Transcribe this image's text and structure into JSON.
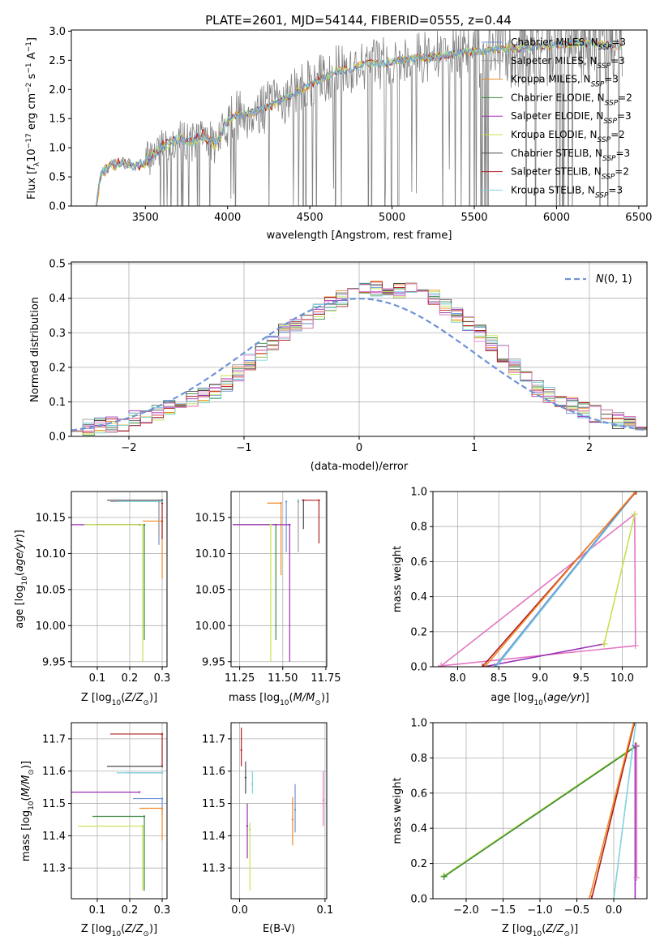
{
  "figure": {
    "title": "PLATE=2601, MJD=54144, FIBERID=0555, z=0.44"
  },
  "colors": {
    "Chabrier MILES": "#6f93d6",
    "Salpeter MILES": "#9b9b9b",
    "Kroupa MILES": "#f08a28",
    "Chabrier ELODIE": "#3d8a3d",
    "Salpeter ELODIE": "#9d2fb5",
    "Kroupa ELODIE": "#c4e34c",
    "Chabrier STELIB": "#4a4a4a",
    "Salpeter STELIB": "#b01e1e",
    "Kroupa STELIB": "#7fd3df",
    "Salpeter MILES marker": "#e377c2",
    "gaussian": "#6f93d6"
  },
  "chart_data": [
    {
      "id": "spectrum",
      "type": "line",
      "xlabel": "wavelength [Angstrom, rest frame]",
      "ylabel": "Flux [f_λ 10^-17 erg cm^-2 s^-1 A^-1]",
      "xlim": [
        3050,
        6550
      ],
      "ylim": [
        0,
        3.02
      ],
      "xticks": [
        3500,
        4000,
        4500,
        5000,
        5500,
        6000,
        6500
      ],
      "yticks": [
        0.0,
        0.5,
        1.0,
        1.5,
        2.0,
        2.5,
        3.0
      ],
      "grid": false,
      "legend_position": "top-right",
      "legend": [
        {
          "label": "Chabrier MILES, N_SSP=3",
          "color": "Chabrier MILES"
        },
        {
          "label": "Salpeter MILES, N_SSP=3",
          "color": "Salpeter MILES"
        },
        {
          "label": "Kroupa MILES, N_SSP=3",
          "color": "Kroupa MILES"
        },
        {
          "label": "Chabrier ELODIE, N_SSP=2",
          "color": "Chabrier ELODIE"
        },
        {
          "label": "Salpeter ELODIE, N_SSP=3",
          "color": "Salpeter ELODIE"
        },
        {
          "label": "Kroupa ELODIE, N_SSP=2",
          "color": "Kroupa ELODIE"
        },
        {
          "label": "Chabrier STELIB, N_SSP=3",
          "color": "Chabrier STELIB"
        },
        {
          "label": "Salpeter STELIB, N_SSP=2",
          "color": "Salpeter STELIB"
        },
        {
          "label": "Kroupa STELIB, N_SSP=3",
          "color": "Kroupa STELIB"
        }
      ],
      "model_envelope": {
        "x": [
          3200,
          3230,
          3260,
          3300,
          3350,
          3400,
          3450,
          3500,
          3560,
          3620,
          3700,
          3780,
          3850,
          3930,
          4000,
          4050,
          4150,
          4250,
          4350,
          4450,
          4550,
          4650,
          4750,
          4850,
          4950,
          5050,
          5150,
          5250,
          5350,
          5450,
          5550,
          5650,
          5750,
          5850,
          5950,
          6050,
          6150,
          6250,
          6350,
          6400
        ],
        "y": [
          0.0,
          0.55,
          0.62,
          0.7,
          0.74,
          0.72,
          0.68,
          0.75,
          0.95,
          1.05,
          1.15,
          1.1,
          1.22,
          1.05,
          1.45,
          1.55,
          1.6,
          1.7,
          1.85,
          2.0,
          2.15,
          2.3,
          2.35,
          2.45,
          2.45,
          2.5,
          2.55,
          2.55,
          2.6,
          2.65,
          2.65,
          2.7,
          2.7,
          2.72,
          2.75,
          2.78,
          2.8,
          2.78,
          2.75,
          2.75
        ]
      }
    },
    {
      "id": "residuals",
      "type": "line",
      "xlabel": "(data-model)/error",
      "ylabel": "Normed distribution",
      "xlim": [
        -2.5,
        2.5
      ],
      "ylim": [
        0,
        0.505
      ],
      "xticks": [
        -2,
        -1,
        0,
        1,
        2
      ],
      "yticks": [
        0.0,
        0.1,
        0.2,
        0.3,
        0.4,
        0.5
      ],
      "grid": true,
      "legend_position": "top-right",
      "legend": [
        {
          "label": "N(0,1)",
          "color": "gaussian",
          "style": "dashed"
        }
      ],
      "bins": [
        -2.5,
        -2.4,
        -2.3,
        -2.2,
        -2.1,
        -2.0,
        -1.9,
        -1.8,
        -1.7,
        -1.6,
        -1.5,
        -1.4,
        -1.3,
        -1.2,
        -1.1,
        -1.0,
        -0.9,
        -0.8,
        -0.7,
        -0.6,
        -0.5,
        -0.4,
        -0.3,
        -0.2,
        -0.1,
        0.0,
        0.1,
        0.2,
        0.3,
        0.4,
        0.5,
        0.6,
        0.7,
        0.8,
        0.9,
        1.0,
        1.1,
        1.2,
        1.3,
        1.4,
        1.5,
        1.6,
        1.7,
        1.8,
        1.9,
        2.0,
        2.1,
        2.2,
        2.3,
        2.4,
        2.5
      ],
      "histogram_mean": [
        0.025,
        0.025,
        0.03,
        0.035,
        0.04,
        0.05,
        0.055,
        0.07,
        0.085,
        0.1,
        0.11,
        0.12,
        0.13,
        0.155,
        0.185,
        0.215,
        0.245,
        0.27,
        0.3,
        0.32,
        0.335,
        0.36,
        0.385,
        0.4,
        0.41,
        0.42,
        0.43,
        0.43,
        0.425,
        0.42,
        0.415,
        0.4,
        0.375,
        0.35,
        0.325,
        0.3,
        0.27,
        0.24,
        0.2,
        0.17,
        0.14,
        0.12,
        0.105,
        0.09,
        0.075,
        0.065,
        0.055,
        0.045,
        0.035,
        0.03
      ]
    },
    {
      "id": "age-vs-Z",
      "type": "scatter",
      "xlabel": "Z [log10(Z/Z⊙)]",
      "ylabel": "age  [log10(age/yr)]",
      "xlim": [
        0.02,
        0.315
      ],
      "ylim": [
        9.943,
        10.186
      ],
      "xticks": [
        0.1,
        0.2,
        0.3
      ],
      "yticks": [
        9.95,
        10.0,
        10.05,
        10.1,
        10.15
      ],
      "grid": true,
      "points": [
        {
          "model": "Chabrier MILES",
          "x": 0.29,
          "y": 10.172,
          "xerr": [
            0.13,
            0.0
          ],
          "yerr": [
            0.06,
            0.0
          ]
        },
        {
          "model": "Salpeter MILES",
          "x": 0.29,
          "y": 10.172,
          "xerr": [
            0.15,
            0.0
          ],
          "yerr": [
            0.05,
            0.0
          ]
        },
        {
          "model": "Kroupa MILES",
          "x": 0.3,
          "y": 10.145,
          "xerr": [
            0.06,
            0.0
          ],
          "yerr": [
            0.08,
            0.0
          ]
        },
        {
          "model": "Chabrier ELODIE",
          "x": 0.245,
          "y": 10.14,
          "xerr": [
            0.15,
            0.0
          ],
          "yerr": [
            0.16,
            0.0
          ]
        },
        {
          "model": "Salpeter ELODIE",
          "x": 0.23,
          "y": 10.14,
          "xerr": [
            0.21,
            0.0
          ],
          "yerr": [
            0.0,
            0.0
          ]
        },
        {
          "model": "Kroupa ELODIE",
          "x": 0.24,
          "y": 10.14,
          "xerr": [
            0.18,
            0.0
          ],
          "yerr": [
            0.19,
            0.0
          ]
        },
        {
          "model": "Chabrier STELIB",
          "x": 0.3,
          "y": 10.174,
          "xerr": [
            0.17,
            0.0
          ],
          "yerr": [
            0.0,
            0.0
          ]
        },
        {
          "model": "Salpeter STELIB",
          "x": 0.3,
          "y": 10.17,
          "xerr": [
            0.0,
            0.0
          ],
          "yerr": [
            0.05,
            0.0
          ]
        },
        {
          "model": "Kroupa STELIB",
          "x": 0.3,
          "y": 10.172,
          "xerr": [
            0.14,
            0.0
          ],
          "yerr": [
            0.0,
            0.0
          ]
        }
      ]
    },
    {
      "id": "age-vs-mass",
      "type": "scatter",
      "xlabel": "mass [log10(M/M⊙)]",
      "ylabel": "",
      "xlim": [
        11.2,
        11.755
      ],
      "ylim": [
        9.943,
        10.186
      ],
      "xticks": [
        11.25,
        11.5,
        11.75
      ],
      "yticks": [
        9.95,
        10.0,
        10.05,
        10.1,
        10.15
      ],
      "grid": true,
      "points": [
        {
          "model": "Chabrier MILES",
          "x": 11.52,
          "y": 10.172,
          "xerr": [
            0.0,
            0.0
          ],
          "yerr": [
            0.07,
            0.0
          ]
        },
        {
          "model": "Salpeter MILES",
          "x": 11.59,
          "y": 10.172,
          "xerr": [
            0.0,
            0.0
          ],
          "yerr": [
            0.07,
            0.0
          ]
        },
        {
          "model": "Kroupa MILES",
          "x": 11.49,
          "y": 10.17,
          "xerr": [
            0.08,
            0.0
          ],
          "yerr": [
            0.1,
            0.0
          ]
        },
        {
          "model": "Chabrier ELODIE",
          "x": 11.46,
          "y": 10.14,
          "xerr": [
            0.25,
            0.0
          ],
          "yerr": [
            0.16,
            0.0
          ]
        },
        {
          "model": "Salpeter ELODIE",
          "x": 11.54,
          "y": 10.14,
          "xerr": [
            0.33,
            0.0
          ],
          "yerr": [
            0.19,
            0.0
          ]
        },
        {
          "model": "Kroupa ELODIE",
          "x": 11.43,
          "y": 10.14,
          "xerr": [
            0.0,
            0.0
          ],
          "yerr": [
            0.19,
            0.0
          ]
        },
        {
          "model": "Chabrier STELIB",
          "x": 11.62,
          "y": 10.174,
          "xerr": [
            0.0,
            0.0
          ],
          "yerr": [
            0.04,
            0.0
          ]
        },
        {
          "model": "Salpeter STELIB",
          "x": 11.71,
          "y": 10.174,
          "xerr": [
            0.1,
            0.0
          ],
          "yerr": [
            0.06,
            0.0
          ]
        },
        {
          "model": "Kroupa STELIB",
          "x": 11.59,
          "y": 10.174,
          "xerr": [
            0.0,
            0.0
          ],
          "yerr": [
            0.0,
            0.0
          ]
        }
      ]
    },
    {
      "id": "mass-weight-vs-age",
      "type": "line",
      "xlabel": "age  [log10(age/yr)]",
      "ylabel": "mass weight",
      "xlim": [
        7.7,
        10.3
      ],
      "ylim": [
        0,
        1.0
      ],
      "xticks": [
        8.0,
        8.5,
        9.0,
        9.5,
        10.0
      ],
      "yticks": [
        0.0,
        0.2,
        0.4,
        0.6,
        0.8,
        1.0
      ],
      "grid": true,
      "series": [
        {
          "model": "Salpeter MILES marker",
          "x": [
            7.8,
            10.16,
            10.15,
            7.8
          ],
          "y": [
            0.005,
            0.12,
            0.87,
            0.005
          ]
        },
        {
          "model": "Salpeter ELODIE",
          "x": [
            8.32,
            9.78,
            8.32
          ],
          "y": [
            0.0,
            0.13,
            0.0
          ]
        },
        {
          "model": "Kroupa ELODIE",
          "x": [
            9.78,
            10.15,
            9.78
          ],
          "y": [
            0.13,
            0.87,
            0.13
          ]
        },
        {
          "model": "Kroupa STELIB",
          "x": [
            8.47,
            10.17,
            8.47
          ],
          "y": [
            0.0,
            1.0,
            0.0
          ]
        },
        {
          "model": "Chabrier MILES",
          "x": [
            8.45,
            10.16,
            8.45
          ],
          "y": [
            0.0,
            1.0,
            0.0
          ]
        },
        {
          "model": "Salpeter STELIB",
          "x": [
            8.3,
            10.17,
            8.3
          ],
          "y": [
            0.0,
            1.0,
            0.0
          ]
        },
        {
          "model": "Kroupa MILES",
          "x": [
            8.33,
            10.16,
            8.33
          ],
          "y": [
            0.0,
            1.0,
            0.0
          ]
        }
      ]
    },
    {
      "id": "mass-vs-Z",
      "type": "scatter",
      "xlabel": "Z [log10(Z/Z⊙)]",
      "ylabel": "mass [log10(M/M⊙)]",
      "xlim": [
        0.02,
        0.315
      ],
      "ylim": [
        11.205,
        11.75
      ],
      "xticks": [
        0.1,
        0.2,
        0.3
      ],
      "yticks": [
        11.3,
        11.4,
        11.5,
        11.6,
        11.7
      ],
      "grid": true,
      "points": [
        {
          "model": "Chabrier MILES",
          "x": 0.3,
          "y": 11.515,
          "xerr": [
            0.09,
            0.0
          ],
          "yerr": [
            0.05,
            0.0
          ]
        },
        {
          "model": "Salpeter MILES",
          "x": 0.3,
          "y": 11.595,
          "xerr": [
            0.11,
            0.0
          ],
          "yerr": [
            0.0,
            0.0
          ]
        },
        {
          "model": "Kroupa MILES",
          "x": 0.3,
          "y": 11.485,
          "xerr": [
            0.07,
            0.0
          ],
          "yerr": [
            0.1,
            0.0
          ]
        },
        {
          "model": "Chabrier ELODIE",
          "x": 0.245,
          "y": 11.46,
          "xerr": [
            0.16,
            0.0
          ],
          "yerr": [
            0.23,
            0.0
          ]
        },
        {
          "model": "Salpeter ELODIE",
          "x": 0.23,
          "y": 11.535,
          "xerr": [
            0.21,
            0.0
          ],
          "yerr": [
            0.0,
            0.0
          ]
        },
        {
          "model": "Kroupa ELODIE",
          "x": 0.24,
          "y": 11.43,
          "xerr": [
            0.2,
            0.0
          ],
          "yerr": [
            0.2,
            0.0
          ]
        },
        {
          "model": "Chabrier STELIB",
          "x": 0.3,
          "y": 11.615,
          "xerr": [
            0.17,
            0.0
          ],
          "yerr": [
            0.0,
            0.0
          ]
        },
        {
          "model": "Salpeter STELIB",
          "x": 0.3,
          "y": 11.715,
          "xerr": [
            0.16,
            0.0
          ],
          "yerr": [
            0.1,
            0.0
          ]
        },
        {
          "model": "Kroupa STELIB",
          "x": 0.3,
          "y": 11.595,
          "xerr": [
            0.14,
            0.0
          ],
          "yerr": [
            0.0,
            0.0
          ]
        }
      ]
    },
    {
      "id": "mass-vs-EBV",
      "type": "scatter",
      "xlabel": "E(B-V)",
      "ylabel": "",
      "xlim": [
        -0.01,
        0.102
      ],
      "ylim": [
        11.205,
        11.75
      ],
      "xticks": [
        0.0,
        0.1
      ],
      "yticks": [
        11.3,
        11.4,
        11.5,
        11.6,
        11.7
      ],
      "grid": true,
      "points": [
        {
          "model": "Salpeter STELIB",
          "x": 0.002,
          "y": 11.665,
          "yerr": [
            0.05,
            0.07
          ]
        },
        {
          "model": "Chabrier STELIB",
          "x": 0.007,
          "y": 11.58,
          "yerr": [
            0.05,
            0.05
          ]
        },
        {
          "model": "Salpeter ELODIE",
          "x": 0.009,
          "y": 11.43,
          "yerr": [
            0.1,
            0.07
          ]
        },
        {
          "model": "Kroupa ELODIE",
          "x": 0.012,
          "y": 11.42,
          "yerr": [
            0.19,
            0.02
          ]
        },
        {
          "model": "Kroupa STELIB",
          "x": 0.015,
          "y": 11.56,
          "yerr": [
            0.03,
            0.04
          ]
        },
        {
          "model": "Kroupa MILES",
          "x": 0.062,
          "y": 11.45,
          "yerr": [
            0.08,
            0.07
          ]
        },
        {
          "model": "Chabrier MILES",
          "x": 0.065,
          "y": 11.48,
          "yerr": [
            0.07,
            0.08
          ]
        },
        {
          "model": "Salpeter MILES marker",
          "x": 0.098,
          "y": 11.51,
          "yerr": [
            0.08,
            0.09
          ]
        }
      ]
    },
    {
      "id": "mass-weight-vs-Z",
      "type": "line",
      "xlabel": "Z [log10(Z/Z⊙)]",
      "ylabel": "mass weight",
      "xlim": [
        -2.45,
        0.45
      ],
      "ylim": [
        0,
        1.0
      ],
      "xticks": [
        -2.0,
        -1.5,
        -1.0,
        -0.5,
        0.0
      ],
      "yticks": [
        0.0,
        0.2,
        0.4,
        0.6,
        0.8,
        1.0
      ],
      "grid": true,
      "series": [
        {
          "model": "Kroupa ELODIE",
          "x": [
            -2.3,
            0.3,
            -2.3
          ],
          "y": [
            0.13,
            0.87,
            0.13
          ]
        },
        {
          "model": "Chabrier ELODIE",
          "x": [
            -2.3,
            0.3,
            -2.3
          ],
          "y": [
            0.125,
            0.865,
            0.125
          ]
        },
        {
          "model": "Salpeter STELIB",
          "x": [
            -0.3,
            0.28,
            -0.3
          ],
          "y": [
            0.0,
            1.0,
            0.0
          ]
        },
        {
          "model": "Kroupa MILES",
          "x": [
            -0.33,
            0.27,
            -0.33
          ],
          "y": [
            0.0,
            1.0,
            0.0
          ]
        },
        {
          "model": "Kroupa STELIB",
          "x": [
            0.0,
            0.3,
            0.0
          ],
          "y": [
            0.0,
            1.0,
            0.0
          ]
        },
        {
          "model": "Salpeter ELODIE",
          "x": [
            0.29,
            0.29
          ],
          "y": [
            0.0,
            0.87
          ]
        },
        {
          "model": "Salpeter MILES marker",
          "x": [
            0.31,
            0.31
          ],
          "y": [
            0.12,
            0.87
          ]
        }
      ]
    }
  ]
}
